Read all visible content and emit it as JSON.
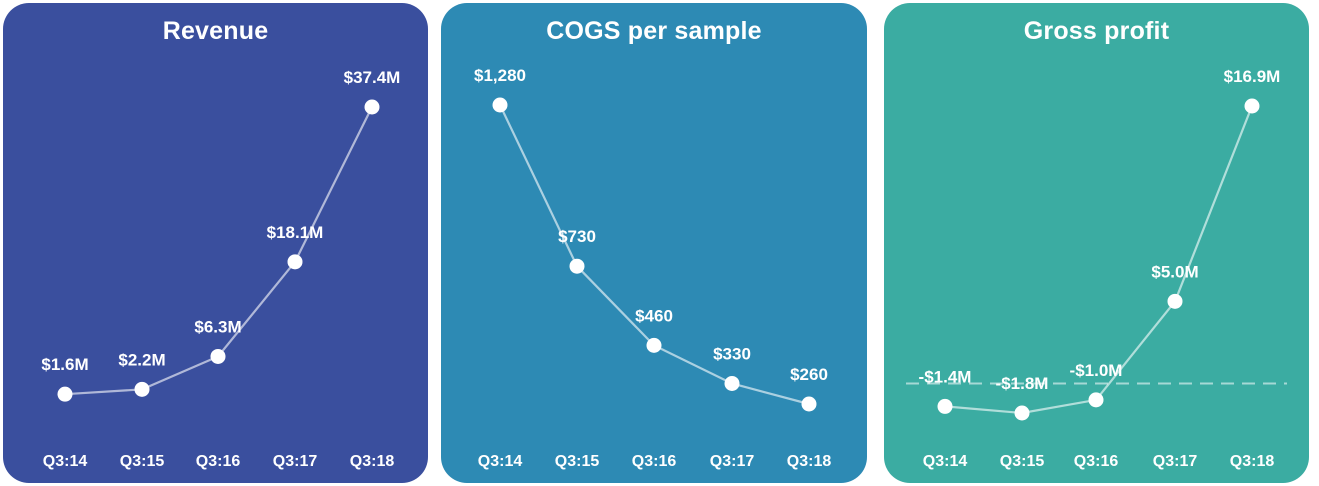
{
  "colors": {
    "panel_bgs": [
      "#3a4f9e",
      "#2d8ab4",
      "#3baca2"
    ],
    "line": "#ffffff",
    "marker": "#ffffff",
    "text": "#ffffff"
  },
  "chart_data": [
    {
      "type": "line",
      "title": "Revenue",
      "categories": [
        "Q3:14",
        "Q3:15",
        "Q3:16",
        "Q3:17",
        "Q3:18"
      ],
      "values": [
        1.6,
        2.2,
        6.3,
        18.1,
        37.4
      ],
      "data_labels": [
        "$1.6M",
        "$2.2M",
        "$6.3M",
        "$18.1M",
        "$37.4M"
      ],
      "ylim": [
        0,
        37.4
      ],
      "grid": false,
      "legend": "none"
    },
    {
      "type": "line",
      "title": "COGS per sample",
      "categories": [
        "Q3:14",
        "Q3:15",
        "Q3:16",
        "Q3:17",
        "Q3:18"
      ],
      "values": [
        1280,
        730,
        460,
        330,
        260
      ],
      "data_labels": [
        "$1,280",
        "$730",
        "$460",
        "$330",
        "$260"
      ],
      "ylim": [
        260,
        1280
      ],
      "grid": false,
      "legend": "none"
    },
    {
      "type": "line",
      "title": "Gross profit",
      "categories": [
        "Q3:14",
        "Q3:15",
        "Q3:16",
        "Q3:17",
        "Q3:18"
      ],
      "values": [
        -1.4,
        -1.8,
        -1.0,
        5.0,
        16.9
      ],
      "data_labels": [
        "-$1.4M",
        "-$1.8M",
        "-$1.0M",
        "$5.0M",
        "$16.9M"
      ],
      "ylim": [
        -1.8,
        16.9
      ],
      "zero_line": true,
      "grid": false,
      "legend": "none"
    }
  ]
}
